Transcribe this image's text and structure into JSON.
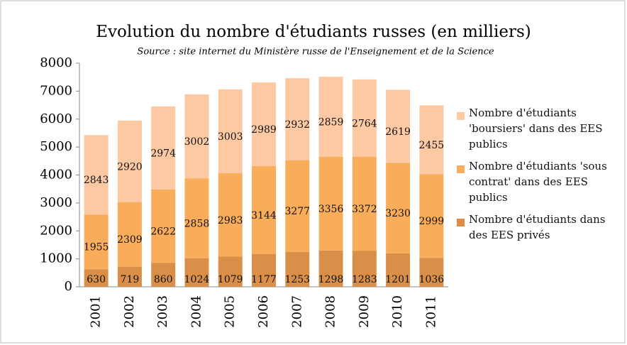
{
  "chart_data": {
    "type": "stacked_bar",
    "title": "Evolution du nombre d'étudiants russes (en milliers)",
    "subtitle": "Source : site internet du Ministère russe de l'Enseignement et de la Science",
    "categories": [
      "2001",
      "2002",
      "2003",
      "2004",
      "2005",
      "2006",
      "2007",
      "2008",
      "2009",
      "2010",
      "2011"
    ],
    "series": [
      {
        "name": "Nombre d'étudiants dans des EES privés",
        "color": "#d98f47",
        "values": [
          630,
          719,
          860,
          1024,
          1079,
          1177,
          1253,
          1298,
          1283,
          1201,
          1036
        ]
      },
      {
        "name": "Nombre d'étudiants 'sous contrat' dans des EES publics",
        "color": "#f9ad5a",
        "values": [
          1955,
          2309,
          2622,
          2858,
          2983,
          3144,
          3277,
          3356,
          3372,
          3230,
          2999
        ]
      },
      {
        "name": "Nombre d'étudiants 'boursiers' dans des EES publics",
        "color": "#fcc9a3",
        "values": [
          2843,
          2920,
          2974,
          3002,
          3003,
          2989,
          2932,
          2859,
          2764,
          2619,
          2455
        ]
      }
    ],
    "ylim": [
      0,
      8000
    ],
    "yticks": [
      0,
      1000,
      2000,
      3000,
      4000,
      5000,
      6000,
      7000,
      8000
    ],
    "grid": false
  }
}
